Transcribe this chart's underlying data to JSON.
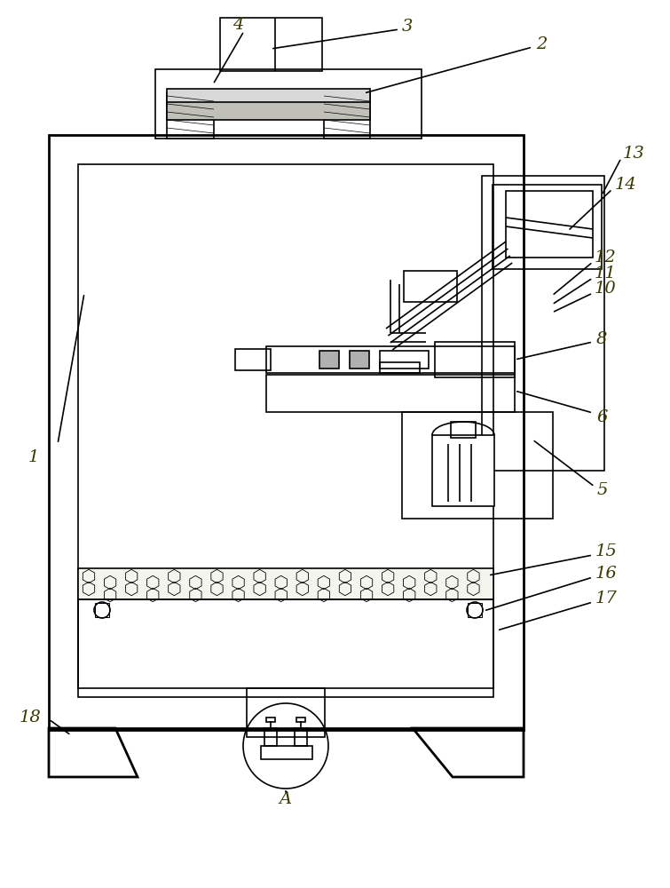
{
  "line_color": "#000000",
  "bg_color": "#ffffff",
  "lw": 1.2,
  "lw2": 2.0,
  "lw_thin": 0.7
}
